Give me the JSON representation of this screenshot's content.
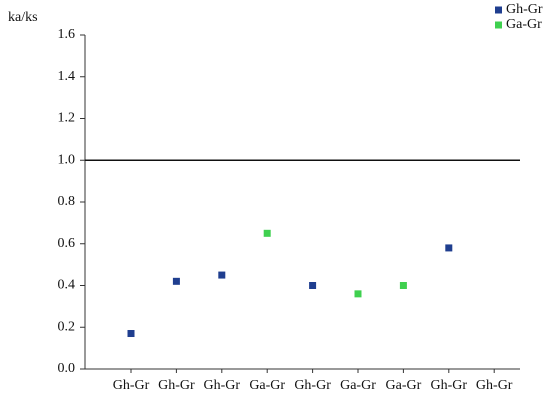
{
  "chart_data": {
    "type": "scatter",
    "y_label": "ka/ks",
    "categories": [
      "Gh-Gr",
      "Gh-Gr",
      "Gh-Gr",
      "Ga-Gr",
      "Gh-Gr",
      "Ga-Gr",
      "Ga-Gr",
      "Gh-Gr",
      "Gh-Gr"
    ],
    "series": [
      {
        "name": "Gh-Gr",
        "color": "#1f3e8f",
        "values": [
          0.17,
          0.42,
          0.45,
          null,
          0.4,
          null,
          null,
          0.58,
          null
        ]
      },
      {
        "name": "Ga-Gr",
        "color": "#3fd04f",
        "values": [
          null,
          null,
          null,
          0.65,
          null,
          0.36,
          0.4,
          null,
          null
        ]
      }
    ],
    "ylim": [
      0,
      1.6
    ],
    "yticks": [
      {
        "value": 0,
        "label": "0.0"
      },
      0.2,
      0.4,
      0.6,
      0.8,
      {
        "value": 1,
        "label": "1.0"
      },
      1.2,
      1.4,
      1.6
    ],
    "reference_line": 1,
    "legend": "top-right"
  }
}
